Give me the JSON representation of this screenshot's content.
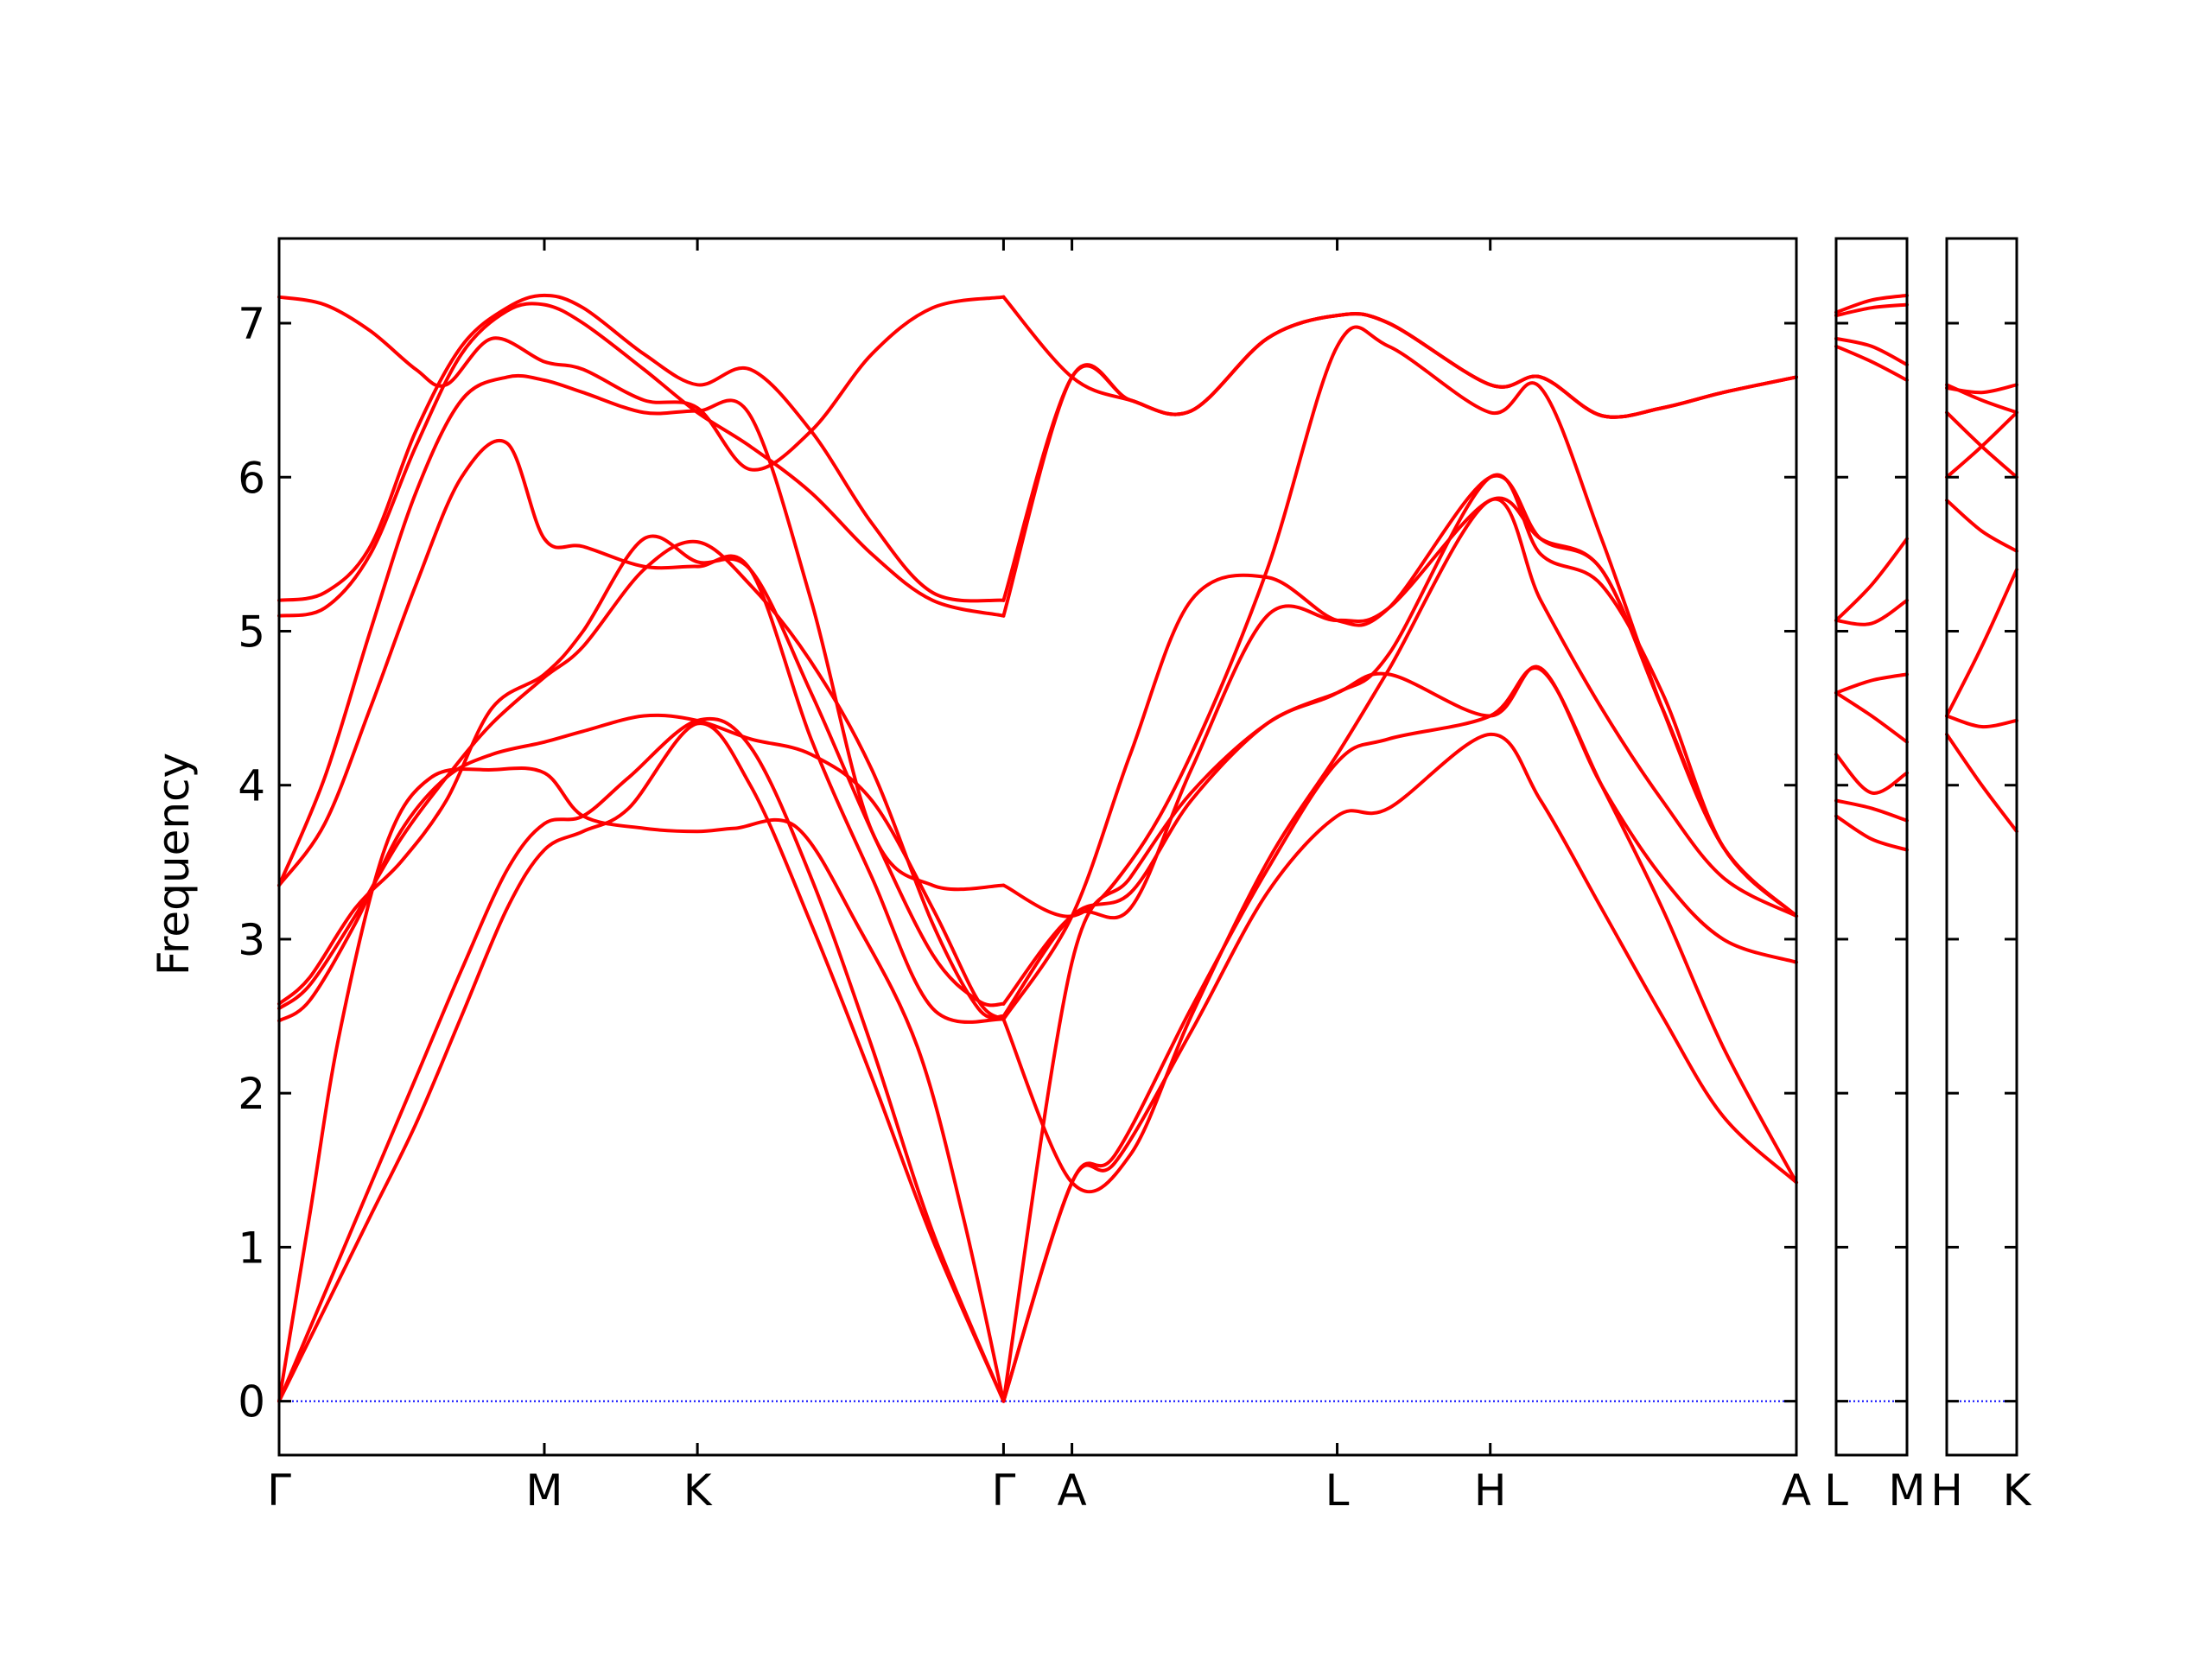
{
  "chart_data": {
    "type": "line",
    "ylabel": "Frequency",
    "xlabel": "",
    "title": "",
    "ylim": [
      -0.35,
      7.55
    ],
    "yticks": [
      0,
      1,
      2,
      3,
      4,
      5,
      6,
      7
    ],
    "ytick_labels": [
      "0",
      "1",
      "2",
      "3",
      "4",
      "5",
      "6",
      "7"
    ],
    "line_color": "#ff0000",
    "zero_line_color": "#0000ff",
    "panels": [
      {
        "id": "main",
        "ticks": [
          {
            "x": 0,
            "label": "Γ"
          },
          {
            "x": 0.1745,
            "label": "M"
          },
          {
            "x": 0.2752,
            "label": "K"
          },
          {
            "x": 0.4766,
            "label": "Γ"
          },
          {
            "x": 0.5216,
            "label": "A"
          },
          {
            "x": 0.6961,
            "label": "L"
          },
          {
            "x": 0.7968,
            "label": "H"
          },
          {
            "x": 0.9982,
            "label": "A"
          }
        ],
        "xrange": [
          0,
          0.9982
        ],
        "bands": [
          {
            "x": [
              0,
              0.03,
              0.06,
              0.09,
              0.12,
              0.15,
              0.1745,
              0.2,
              0.23,
              0.2752,
              0.31,
              0.35,
              0.39,
              0.43,
              0.4766,
              0.4766,
              0.5216,
              0.55,
              0.6,
              0.65,
              0.6961,
              0.73,
              0.7968,
              0.83,
              0.87,
              0.91,
              0.95,
              0.9982
            ],
            "y": [
              0,
              0.6,
              1.2,
              1.8,
              2.5,
              3.2,
              3.58,
              3.7,
              3.85,
              4.4,
              4.0,
              3.1,
              2.1,
              1.05,
              0,
              0,
              1.42,
              1.55,
              2.4,
              3.3,
              3.8,
              3.85,
              4.33,
              3.9,
              3.2,
              2.5,
              1.85,
              1.42
            ]
          },
          {
            "x": [
              0,
              0.03,
              0.06,
              0.09,
              0.12,
              0.15,
              0.1745,
              0.2,
              0.23,
              0.2752,
              0.31,
              0.35,
              0.39,
              0.43,
              0.4766,
              0.4766,
              0.5216,
              0.55,
              0.6,
              0.65,
              0.6961,
              0.73,
              0.7968,
              0.83,
              0.87,
              0.91,
              0.95,
              0.9982
            ],
            "y": [
              0,
              0.7,
              1.4,
              2.1,
              2.8,
              3.45,
              3.75,
              3.8,
              4.05,
              4.42,
              4.25,
              3.4,
              2.3,
              1.1,
              0,
              0,
              1.42,
              1.6,
              2.55,
              3.45,
              4.15,
              4.3,
              4.45,
              4.75,
              4.0,
              3.2,
              2.3,
              1.42
            ]
          },
          {
            "x": [
              0,
              0.02,
              0.04,
              0.07,
              0.1,
              0.14,
              0.1745,
              0.2,
              0.24,
              0.2752,
              0.3,
              0.34,
              0.38,
              0.42,
              0.45,
              0.4766,
              0.4766,
              0.5216,
              0.56,
              0.6,
              0.65,
              0.6961,
              0.73,
              0.7968,
              0.83,
              0.87,
              0.91,
              0.95,
              0.9982
            ],
            "y": [
              0,
              1.2,
              2.4,
              3.6,
              4.05,
              4.1,
              4.08,
              3.8,
              3.72,
              3.7,
              3.72,
              3.73,
              3.1,
              2.3,
              1.2,
              0,
              0,
              2.85,
              3.4,
              3.95,
              4.4,
              4.6,
              4.72,
              4.45,
              4.76,
              4.0,
              3.4,
              3.0,
              2.85
            ]
          },
          {
            "x": [
              0,
              0.02,
              0.05,
              0.08,
              0.11,
              0.14,
              0.1745,
              0.2,
              0.24,
              0.2752,
              0.31,
              0.35,
              0.39,
              0.43,
              0.46,
              0.4766,
              0.4766,
              0.5216,
              0.56,
              0.6,
              0.65,
              0.6961,
              0.73,
              0.7968,
              0.83,
              0.87,
              0.91,
              0.95,
              0.9982
            ],
            "y": [
              2.47,
              2.6,
              3.1,
              3.7,
              4.05,
              4.2,
              4.28,
              4.35,
              4.45,
              4.42,
              4.3,
              4.2,
              3.9,
              3.2,
              2.6,
              2.48,
              2.48,
              1.42,
              1.6,
              2.5,
              3.5,
              4.2,
              4.75,
              5.85,
              5.2,
              4.5,
              3.9,
              3.4,
              3.15
            ]
          },
          {
            "x": [
              0,
              0.02,
              0.05,
              0.08,
              0.11,
              0.14,
              0.1745,
              0.2,
              0.24,
              0.2752,
              0.31,
              0.35,
              0.39,
              0.43,
              0.46,
              0.4766,
              0.4766,
              0.5216,
              0.56,
              0.6,
              0.65,
              0.6961,
              0.73,
              0.7968,
              0.83,
              0.87,
              0.91,
              0.95,
              0.9982
            ],
            "y": [
              2.55,
              2.7,
              3.15,
              3.65,
              4.05,
              4.4,
              4.7,
              4.9,
              5.4,
              5.58,
              5.3,
              4.8,
              4.1,
              3.1,
              2.55,
              2.5,
              2.5,
              3.15,
              3.3,
              3.9,
              4.4,
              4.6,
              4.85,
              6.0,
              5.5,
              5.3,
              4.6,
              3.6,
              3.15
            ]
          },
          {
            "x": [
              0,
              0.02,
              0.05,
              0.08,
              0.11,
              0.14,
              0.1745,
              0.2,
              0.24,
              0.2752,
              0.31,
              0.35,
              0.39,
              0.43,
              0.46,
              0.4766,
              0.4766,
              0.5216,
              0.56,
              0.6,
              0.65,
              0.6961,
              0.73,
              0.7968,
              0.83,
              0.87,
              0.91,
              0.95,
              0.9982
            ],
            "y": [
              2.58,
              2.75,
              3.2,
              3.5,
              3.9,
              4.5,
              4.72,
              5.0,
              5.6,
              5.45,
              5.4,
              4.6,
              3.7,
              2.9,
              2.6,
              2.58,
              2.58,
              3.15,
              3.2,
              4.1,
              5.1,
              5.07,
              5.15,
              5.85,
              5.6,
              5.4,
              4.5,
              3.6,
              3.15
            ]
          },
          {
            "x": [
              0,
              0.03,
              0.06,
              0.09,
              0.12,
              0.15,
              0.1745,
              0.2,
              0.24,
              0.2752,
              0.31,
              0.35,
              0.39,
              0.43,
              0.4766,
              0.4766,
              0.5216,
              0.56,
              0.6,
              0.65,
              0.6961,
              0.73,
              0.7968,
              0.83,
              0.87,
              0.91,
              0.95,
              0.9982
            ],
            "y": [
              3.35,
              3.75,
              4.5,
              5.3,
              6.0,
              6.22,
              5.6,
              5.55,
              5.42,
              5.42,
              5.4,
              4.3,
              3.4,
              2.55,
              2.48,
              2.48,
              3.15,
              4.2,
              5.2,
              5.35,
              5.07,
              5.15,
              6.0,
              5.6,
              5.4,
              4.5,
              3.6,
              3.15
            ]
          },
          {
            "x": [
              0,
              0.03,
              0.06,
              0.09,
              0.12,
              0.15,
              0.1745,
              0.2,
              0.24,
              0.2752,
              0.31,
              0.35,
              0.39,
              0.43,
              0.4766,
              0.4766,
              0.5216,
              0.56,
              0.6,
              0.65,
              0.6961,
              0.73,
              0.7968,
              0.83,
              0.87,
              0.91,
              0.95,
              0.9982
            ],
            "y": [
              3.35,
              4.05,
              5.0,
              5.9,
              6.5,
              6.65,
              6.63,
              6.55,
              6.42,
              6.43,
              6.4,
              5.2,
              3.7,
              3.35,
              3.35,
              3.35,
              3.15,
              3.5,
              4.2,
              5.4,
              6.85,
              6.85,
              6.42,
              6.58,
              5.6,
              4.5,
              3.6,
              3.15
            ]
          },
          {
            "x": [
              0,
              0.03,
              0.06,
              0.09,
              0.12,
              0.15,
              0.1745,
              0.2,
              0.24,
              0.2752,
              0.31,
              0.35,
              0.39,
              0.43,
              0.4766,
              0.4766,
              0.5216,
              0.56,
              0.6,
              0.65,
              0.6961,
              0.73,
              0.7968,
              0.83,
              0.87,
              0.91,
              0.95,
              0.9982
            ],
            "y": [
              5.1,
              5.15,
              5.5,
              6.2,
              6.8,
              7.08,
              7.12,
              7.0,
              6.7,
              6.42,
              6.2,
              5.9,
              5.5,
              5.2,
              5.1,
              5.1,
              6.65,
              6.5,
              6.43,
              6.9,
              7.05,
              7.0,
              6.6,
              6.65,
              6.4,
              6.45,
              6.55,
              6.65
            ]
          },
          {
            "x": [
              0,
              0.03,
              0.06,
              0.09,
              0.12,
              0.15,
              0.1745,
              0.2,
              0.24,
              0.2752,
              0.31,
              0.35,
              0.39,
              0.43,
              0.4766,
              0.4766,
              0.5216,
              0.56,
              0.6,
              0.65,
              0.6961,
              0.73,
              0.7968,
              0.83,
              0.87,
              0.91,
              0.95,
              0.9982
            ],
            "y": [
              5.2,
              5.25,
              5.55,
              6.3,
              6.85,
              7.1,
              7.18,
              7.1,
              6.8,
              6.6,
              6.7,
              6.3,
              5.7,
              5.25,
              5.2,
              5.2,
              6.65,
              6.5,
              6.43,
              6.9,
              7.05,
              7.0,
              6.6,
              6.65,
              6.4,
              6.45,
              6.55,
              6.65
            ]
          },
          {
            "x": [
              0,
              0.03,
              0.06,
              0.09,
              0.11,
              0.14,
              0.1745,
              0.2,
              0.24,
              0.2752,
              0.31,
              0.35,
              0.39,
              0.43,
              0.4766,
              0.4766,
              0.5216,
              0.56,
              0.6,
              0.65,
              0.6961,
              0.73,
              0.7968,
              0.83,
              0.87,
              0.91,
              0.95,
              0.9982
            ],
            "y": [
              7.17,
              7.12,
              6.95,
              6.7,
              6.6,
              6.9,
              6.75,
              6.7,
              6.5,
              6.45,
              6.05,
              6.3,
              6.8,
              7.1,
              7.17,
              7.17,
              6.65,
              6.5,
              6.43,
              6.9,
              7.05,
              7.0,
              6.6,
              6.65,
              6.4,
              6.45,
              6.55,
              6.65
            ]
          }
        ]
      },
      {
        "id": "L-M",
        "ticks": [
          {
            "x": 0,
            "label": "L"
          },
          {
            "x": 1,
            "label": "M"
          }
        ],
        "xrange": [
          0,
          1
        ],
        "bands": [
          {
            "x": [
              0,
              0.5,
              1
            ],
            "y": [
              3.8,
              3.65,
              3.58
            ]
          },
          {
            "x": [
              0,
              0.5,
              1
            ],
            "y": [
              3.9,
              3.85,
              3.77
            ]
          },
          {
            "x": [
              0,
              0.5,
              1
            ],
            "y": [
              4.2,
              3.95,
              4.08
            ]
          },
          {
            "x": [
              0,
              0.5,
              1
            ],
            "y": [
              4.6,
              4.45,
              4.28
            ]
          },
          {
            "x": [
              0,
              0.5,
              1
            ],
            "y": [
              4.6,
              4.68,
              4.72
            ]
          },
          {
            "x": [
              0,
              0.5,
              1
            ],
            "y": [
              5.07,
              5.05,
              5.2
            ]
          },
          {
            "x": [
              0,
              0.5,
              1
            ],
            "y": [
              5.07,
              5.3,
              5.6
            ]
          },
          {
            "x": [
              0,
              0.5,
              1
            ],
            "y": [
              6.85,
              6.75,
              6.63
            ]
          },
          {
            "x": [
              0,
              0.5,
              1
            ],
            "y": [
              6.9,
              6.85,
              6.73
            ]
          },
          {
            "x": [
              0,
              0.5,
              1
            ],
            "y": [
              7.05,
              7.1,
              7.12
            ]
          },
          {
            "x": [
              0,
              0.5,
              1
            ],
            "y": [
              7.07,
              7.15,
              7.18
            ]
          }
        ]
      },
      {
        "id": "H-K",
        "ticks": [
          {
            "x": 0,
            "label": "H"
          },
          {
            "x": 1,
            "label": "K"
          }
        ],
        "xrange": [
          0,
          1
        ],
        "bands": [
          {
            "x": [
              0,
              0.5,
              1
            ],
            "y": [
              4.33,
              4.0,
              3.7
            ]
          },
          {
            "x": [
              0,
              0.5,
              1
            ],
            "y": [
              4.45,
              4.38,
              4.42
            ]
          },
          {
            "x": [
              0,
              0.5,
              1
            ],
            "y": [
              4.45,
              4.9,
              5.4
            ]
          },
          {
            "x": [
              0,
              0.5,
              1
            ],
            "y": [
              5.85,
              5.65,
              5.52
            ]
          },
          {
            "x": [
              0,
              0.5,
              1
            ],
            "y": [
              6.0,
              6.2,
              6.42
            ]
          },
          {
            "x": [
              0,
              0.5,
              1
            ],
            "y": [
              6.42,
              6.2,
              6.0
            ]
          },
          {
            "x": [
              0,
              0.5,
              1
            ],
            "y": [
              6.6,
              6.5,
              6.42
            ]
          },
          {
            "x": [
              0,
              0.5,
              1
            ],
            "y": [
              6.58,
              6.55,
              6.6
            ]
          }
        ]
      }
    ]
  }
}
